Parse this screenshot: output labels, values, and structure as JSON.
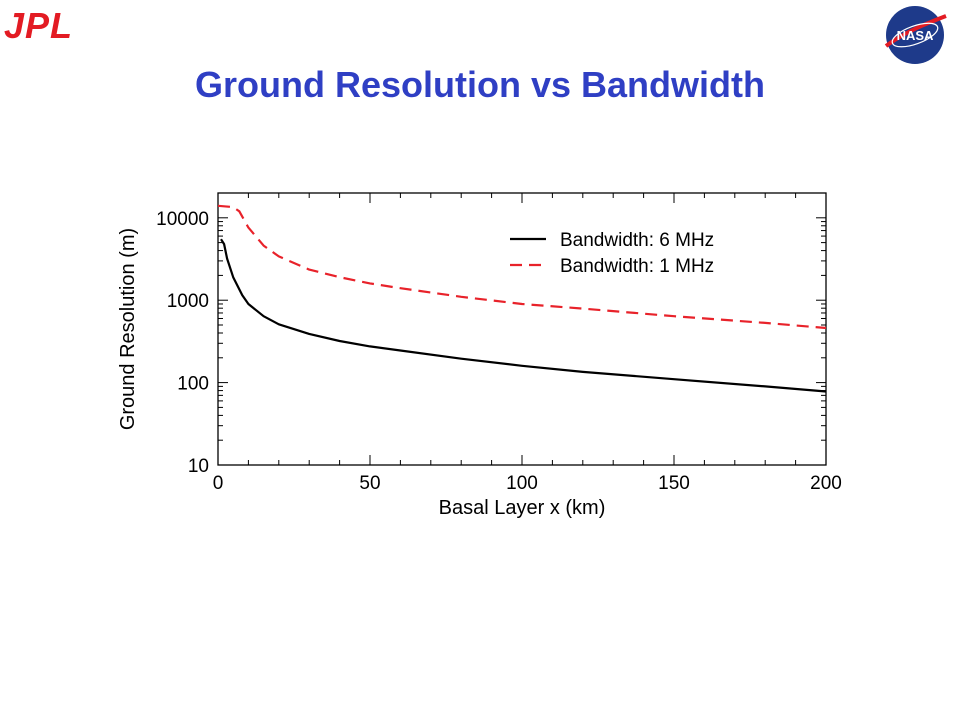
{
  "header": {
    "logo_left": "JPL",
    "logo_right": "NASA",
    "title": "Ground Resolution vs Bandwidth"
  },
  "colors": {
    "title": "#2f3fc4",
    "jpl": "#e31b23",
    "nasa_blue": "#1e3a8a",
    "nasa_red": "#e31b23",
    "series_6mhz": "#000000",
    "series_1mhz": "#e8222a"
  },
  "chart_data": {
    "type": "line",
    "title": "",
    "xlabel": "Basal Layer x (km)",
    "ylabel": "Ground Resolution (m)",
    "xlim": [
      0,
      200
    ],
    "ylim": [
      10,
      20000
    ],
    "yscale": "log",
    "xticks": [
      0,
      50,
      100,
      150,
      200
    ],
    "yticks": [
      10,
      100,
      1000,
      10000
    ],
    "grid": false,
    "legend_position": "top-right",
    "series": [
      {
        "name": "Bandwidth:  6 MHz",
        "style": "solid",
        "x": [
          1,
          2,
          3,
          5,
          8,
          10,
          15,
          20,
          30,
          40,
          50,
          60,
          80,
          100,
          120,
          150,
          180,
          200
        ],
        "y": [
          5500,
          4800,
          3200,
          1900,
          1150,
          900,
          640,
          510,
          390,
          320,
          275,
          245,
          195,
          160,
          135,
          110,
          90,
          78
        ]
      },
      {
        "name": "Bandwidth:  1 MHz",
        "style": "dashed",
        "x": [
          0,
          5,
          7,
          10,
          15,
          20,
          30,
          40,
          50,
          60,
          80,
          100,
          120,
          150,
          180,
          200
        ],
        "y": [
          14000,
          13500,
          12000,
          7600,
          4600,
          3400,
          2350,
          1900,
          1600,
          1400,
          1100,
          900,
          790,
          640,
          530,
          460
        ]
      }
    ]
  }
}
